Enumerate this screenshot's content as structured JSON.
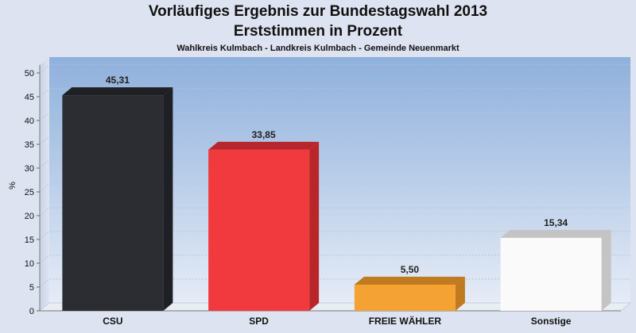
{
  "chart_data": {
    "type": "bar",
    "title": "Vorläufiges Ergebnis zur Bundestagswahl 2013",
    "title_line2": "Erststimmen in Prozent",
    "subtitle": "Wahlkreis Kulmbach - Landkreis Kulmbach - Gemeinde Neuenmarkt",
    "xlabel": "",
    "ylabel": "%",
    "ylim": [
      0,
      50
    ],
    "yticks": [
      0,
      5,
      10,
      15,
      20,
      25,
      30,
      35,
      40,
      45,
      50
    ],
    "grid": true,
    "categories": [
      "CSU",
      "SPD",
      "FREIE WÄHLER",
      "Sonstige"
    ],
    "values": [
      45.31,
      33.85,
      5.5,
      15.34
    ],
    "value_labels": [
      "45,31",
      "33,85",
      "5,50",
      "15,34"
    ],
    "bar_colors": [
      "#2b2d33",
      "#f03a3e",
      "#f4a233",
      "#fafafa"
    ],
    "bar_side_colors": [
      "#1f2024",
      "#b8262a",
      "#c07a20",
      "#c4c4c4"
    ]
  }
}
